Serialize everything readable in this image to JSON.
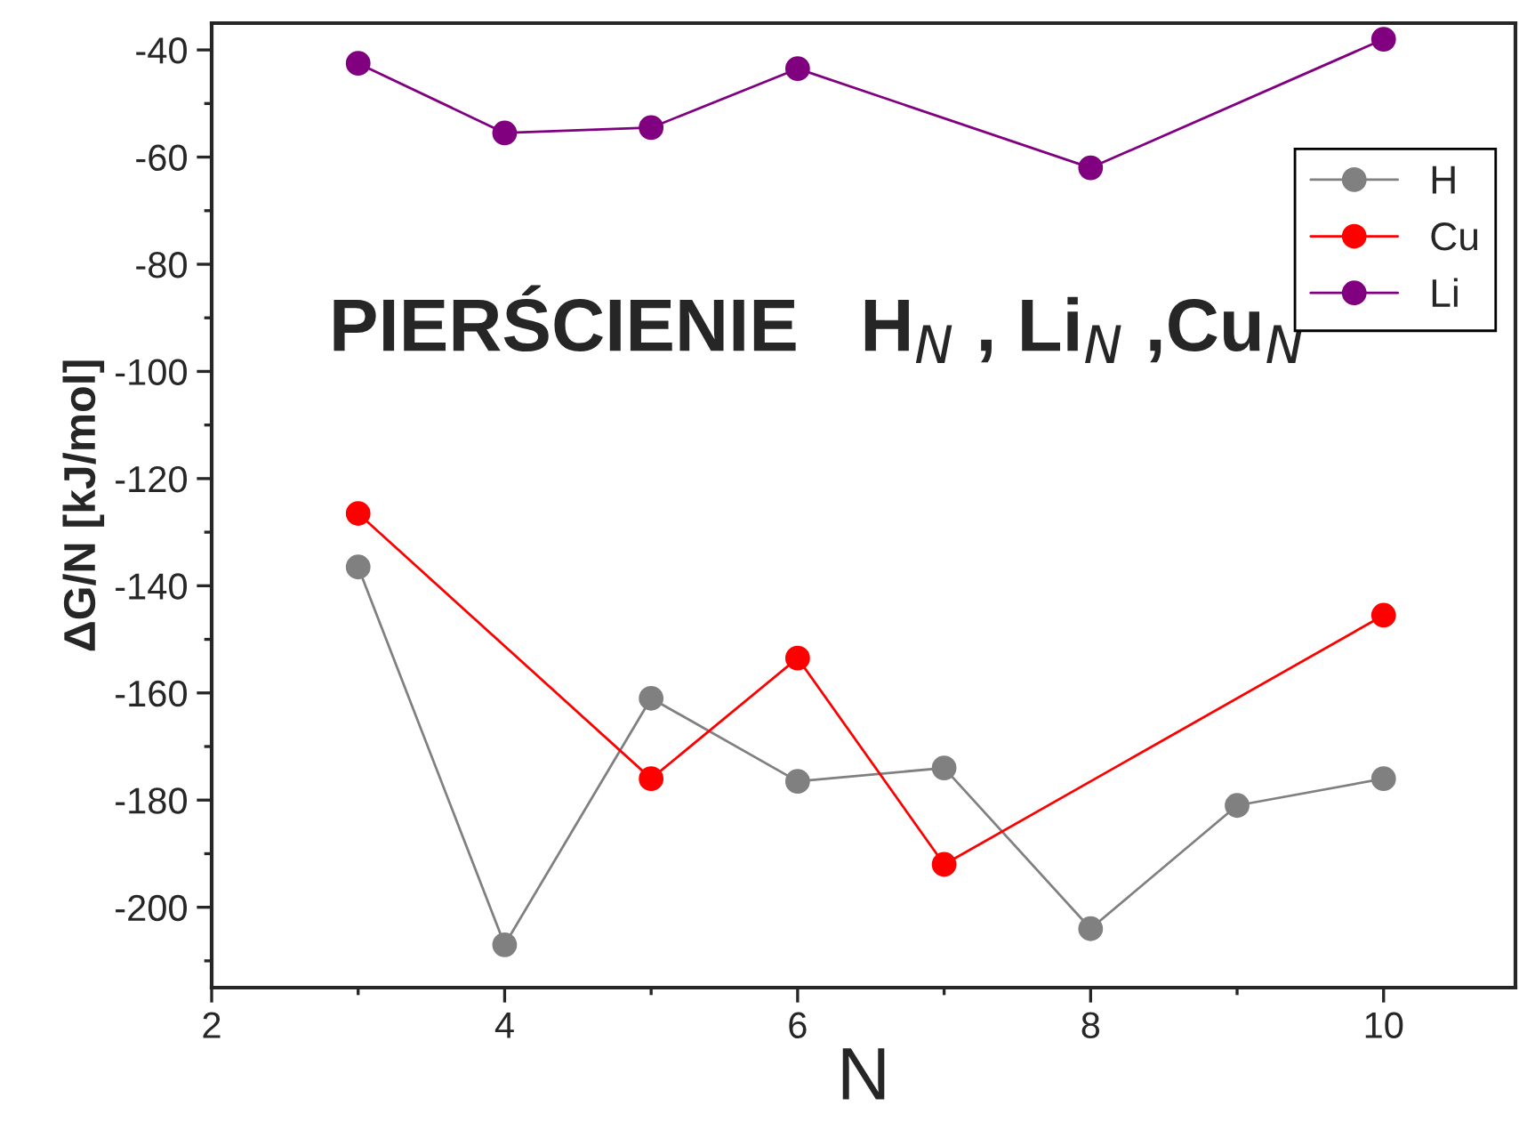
{
  "chart_data": {
    "type": "line",
    "xlabel": "N",
    "ylabel": "ΔG/N [kJ/mol]",
    "annotations": [
      "PIERŚCIENIE   H$_{N}$ , Li$_{N}$ ,Cu$_{N}$"
    ],
    "series": [
      {
        "name": "H",
        "color": "#808080",
        "x": [
          3,
          4,
          5,
          6,
          7,
          8,
          9,
          10
        ],
        "values": [
          -136.5,
          -207,
          -161,
          -176.5,
          -174,
          -204,
          -181,
          -176
        ]
      },
      {
        "name": "Cu",
        "color": "#ff0000",
        "x": [
          3,
          5,
          6,
          7,
          10
        ],
        "values": [
          -126.5,
          -176,
          -153.5,
          -192,
          -145.5
        ]
      },
      {
        "name": "Li",
        "color": "#800080",
        "x": [
          3,
          4,
          5,
          6,
          8,
          10
        ],
        "values": [
          -42.5,
          -55.5,
          -54.5,
          -43.5,
          -62,
          -38
        ]
      }
    ],
    "xlim": [
      2,
      10.9
    ],
    "ylim": [
      -215,
      -35
    ],
    "xticks": [
      2,
      4,
      6,
      8,
      10
    ],
    "yticks": [
      -200,
      -180,
      -160,
      -140,
      -120,
      -100,
      -80,
      -60,
      -40
    ],
    "marker": "circle",
    "line_style": "solid",
    "legend": "top right",
    "grid": false
  }
}
